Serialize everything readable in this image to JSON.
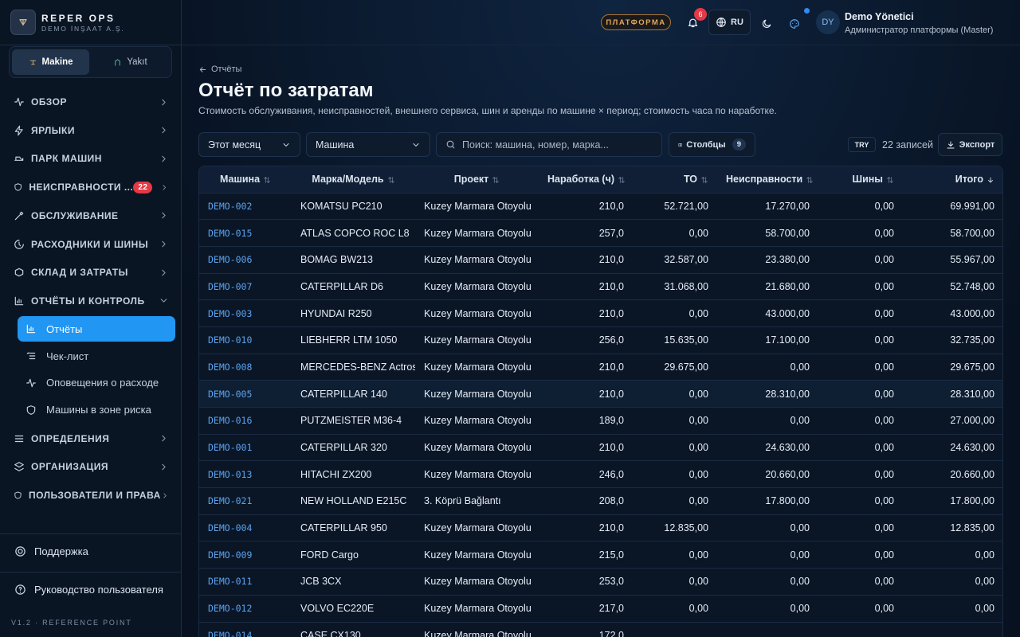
{
  "brand": {
    "name": "REPER OPS",
    "company": "DEMO İNŞAAT A.Ş."
  },
  "tabs": [
    "Makine",
    "Yakıt"
  ],
  "nav": [
    {
      "label": "ОБЗОР"
    },
    {
      "label": "ЯРЛЫКИ"
    },
    {
      "label": "ПАРК МАШИН"
    },
    {
      "label": "НЕИСПРАВНОСТИ ...",
      "badge": 22
    },
    {
      "label": "ОБСЛУЖИВАНИЕ"
    },
    {
      "label": "РАСХОДНИКИ И ШИНЫ"
    },
    {
      "label": "СКЛАД И ЗАТРАТЫ"
    },
    {
      "label": "ОТЧЁТЫ И КОНТРОЛЬ",
      "children": [
        "Отчёты",
        "Чек-лист",
        "Оповещения о расходе",
        "Машины в зоне риска"
      ]
    },
    {
      "label": "ОПРЕДЕЛЕНИЯ"
    },
    {
      "label": "ОРГАНИЗАЦИЯ"
    },
    {
      "label": "ПОЛЬЗОВАТЕЛИ И ПРАВА"
    }
  ],
  "sidebar_footer": {
    "support": "Поддержка",
    "guide": "Руководство пользователя",
    "version": "V1.2 · REFERENCE POINT"
  },
  "topbar": {
    "platform": "ПЛАТФОРМА",
    "notifications": 6,
    "language": "RU",
    "user_initials": "DY",
    "user_name": "Demo Yönetici",
    "user_role": "Администратор платформы (Master)"
  },
  "header": {
    "back": "Отчёты",
    "title": "Отчёт по затратам",
    "subtitle": "Стоимость обслуживания, неисправностей, внешнего сервиса, шин и аренды по машине × период; стоимость часа по наработке."
  },
  "filters": {
    "period": "Этот месяц",
    "machine": "Машина",
    "search_placeholder": "Поиск: машина, номер, марка...",
    "columns_button": "Столбцы",
    "columns_count": 9,
    "currency": "TRY",
    "records": "22 записей",
    "export": "Экспорт"
  },
  "table": {
    "headers": [
      "Машина",
      "Марка/Модель",
      "Проект",
      "Наработка (ч)",
      "ТО",
      "Неисправности",
      "Шины",
      "Итого"
    ],
    "rows": [
      [
        "DEMO-002",
        "KOMATSU PC210",
        "Kuzey Marmara Otoyolu",
        "210,0",
        "52.721,00",
        "17.270,00",
        "0,00",
        "69.991,00"
      ],
      [
        "DEMO-015",
        "ATLAS COPCO ROC L8",
        "Kuzey Marmara Otoyolu",
        "257,0",
        "0,00",
        "58.700,00",
        "0,00",
        "58.700,00"
      ],
      [
        "DEMO-006",
        "BOMAG BW213",
        "Kuzey Marmara Otoyolu",
        "210,0",
        "32.587,00",
        "23.380,00",
        "0,00",
        "55.967,00"
      ],
      [
        "DEMO-007",
        "CATERPILLAR D6",
        "Kuzey Marmara Otoyolu",
        "210,0",
        "31.068,00",
        "21.680,00",
        "0,00",
        "52.748,00"
      ],
      [
        "DEMO-003",
        "HYUNDAI R250",
        "Kuzey Marmara Otoyolu",
        "210,0",
        "0,00",
        "43.000,00",
        "0,00",
        "43.000,00"
      ],
      [
        "DEMO-010",
        "LIEBHERR LTM 1050",
        "Kuzey Marmara Otoyolu",
        "256,0",
        "15.635,00",
        "17.100,00",
        "0,00",
        "32.735,00"
      ],
      [
        "DEMO-008",
        "MERCEDES-BENZ Actros",
        "Kuzey Marmara Otoyolu",
        "210,0",
        "29.675,00",
        "0,00",
        "0,00",
        "29.675,00"
      ],
      [
        "DEMO-005",
        "CATERPILLAR 140",
        "Kuzey Marmara Otoyolu",
        "210,0",
        "0,00",
        "28.310,00",
        "0,00",
        "28.310,00"
      ],
      [
        "DEMO-016",
        "PUTZMEISTER M36-4",
        "Kuzey Marmara Otoyolu",
        "189,0",
        "0,00",
        "0,00",
        "0,00",
        "27.000,00"
      ],
      [
        "DEMO-001",
        "CATERPILLAR 320",
        "Kuzey Marmara Otoyolu",
        "210,0",
        "0,00",
        "24.630,00",
        "0,00",
        "24.630,00"
      ],
      [
        "DEMO-013",
        "HITACHI ZX200",
        "Kuzey Marmara Otoyolu",
        "246,0",
        "0,00",
        "20.660,00",
        "0,00",
        "20.660,00"
      ],
      [
        "DEMO-021",
        "NEW HOLLAND E215C",
        "3. Köprü Bağlantı",
        "208,0",
        "0,00",
        "17.800,00",
        "0,00",
        "17.800,00"
      ],
      [
        "DEMO-004",
        "CATERPILLAR 950",
        "Kuzey Marmara Otoyolu",
        "210,0",
        "12.835,00",
        "0,00",
        "0,00",
        "12.835,00"
      ],
      [
        "DEMO-009",
        "FORD Cargo",
        "Kuzey Marmara Otoyolu",
        "215,0",
        "0,00",
        "0,00",
        "0,00",
        "0,00"
      ],
      [
        "DEMO-011",
        "JCB 3CX",
        "Kuzey Marmara Otoyolu",
        "253,0",
        "0,00",
        "0,00",
        "0,00",
        "0,00"
      ],
      [
        "DEMO-012",
        "VOLVO EC220E",
        "Kuzey Marmara Otoyolu",
        "217,0",
        "0,00",
        "0,00",
        "0,00",
        "0,00"
      ],
      [
        "DEMO-014",
        "CASE CX130",
        "Kuzey Marmara Otoyolu",
        "172,0"
      ]
    ]
  }
}
